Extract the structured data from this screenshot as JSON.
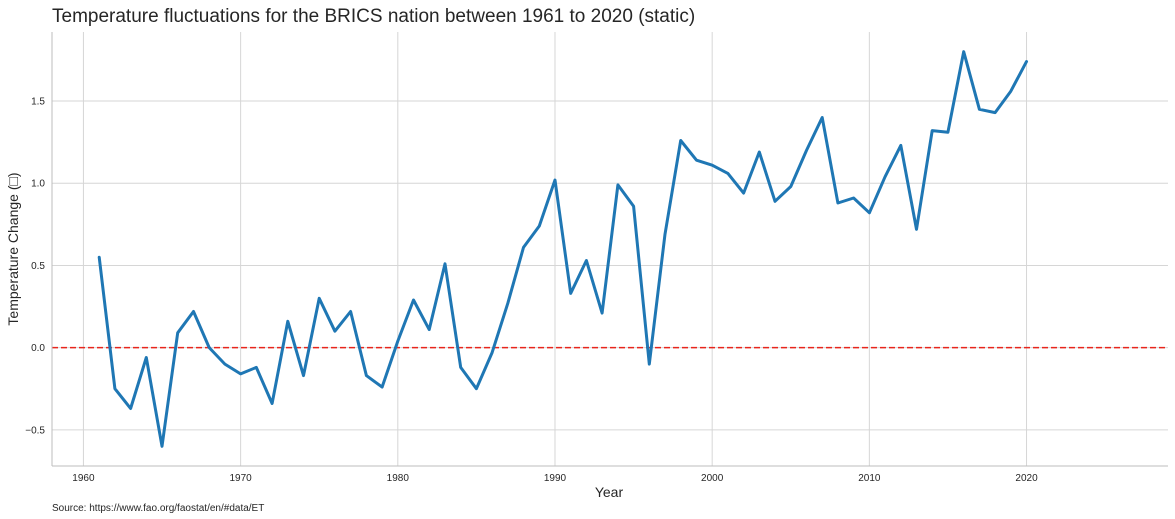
{
  "chart_data": {
    "type": "line",
    "title": "Temperature fluctuations for the BRICS nation between 1961 to 2020 (static)",
    "xlabel": "Year",
    "ylabel": "Temperature Change (□)",
    "source": "Source: https://www.fao.org/faostat/en/#data/ET",
    "xlim": [
      1958,
      2029
    ],
    "ylim": [
      -0.72,
      1.92
    ],
    "x_ticks": [
      1960,
      1970,
      1980,
      1990,
      2000,
      2010,
      2020
    ],
    "y_ticks": [
      -0.5,
      0.0,
      0.5,
      1.0,
      1.5
    ],
    "x_tick_labels": [
      "1960",
      "1970",
      "1980",
      "1990",
      "2000",
      "2010",
      "2020"
    ],
    "y_tick_labels": [
      "−0.5",
      "0.0",
      "0.5",
      "1.0",
      "1.5"
    ],
    "grid": true,
    "reference_line": {
      "y": 0.0,
      "style": "dashed",
      "color": "#e8251c"
    },
    "series": [
      {
        "color": "#1f77b4",
        "x": [
          1961,
          1962,
          1963,
          1964,
          1965,
          1966,
          1967,
          1968,
          1969,
          1970,
          1971,
          1972,
          1973,
          1974,
          1975,
          1976,
          1977,
          1978,
          1979,
          1980,
          1981,
          1982,
          1983,
          1984,
          1985,
          1986,
          1987,
          1988,
          1989,
          1990,
          1991,
          1992,
          1993,
          1994,
          1995,
          1996,
          1997,
          1998,
          1999,
          2000,
          2001,
          2002,
          2003,
          2004,
          2005,
          2006,
          2007,
          2008,
          2009,
          2010,
          2011,
          2012,
          2013,
          2014,
          2015,
          2016,
          2017,
          2018,
          2019,
          2020
        ],
        "values": [
          0.55,
          -0.25,
          -0.37,
          -0.06,
          -0.6,
          0.09,
          0.22,
          0.0,
          -0.1,
          -0.16,
          -0.12,
          -0.34,
          0.16,
          -0.17,
          0.3,
          0.1,
          0.22,
          -0.17,
          -0.24,
          0.04,
          0.29,
          0.11,
          0.51,
          -0.12,
          -0.25,
          -0.03,
          0.27,
          0.61,
          0.74,
          1.02,
          0.33,
          0.53,
          0.21,
          0.99,
          0.86,
          -0.1,
          0.69,
          1.26,
          1.14,
          1.11,
          1.06,
          0.94,
          1.19,
          0.89,
          0.98,
          1.2,
          1.4,
          0.88,
          0.91,
          0.82,
          1.04,
          1.23,
          0.72,
          1.32,
          1.31,
          1.8,
          1.45,
          1.43,
          1.56,
          1.74
        ]
      }
    ]
  }
}
